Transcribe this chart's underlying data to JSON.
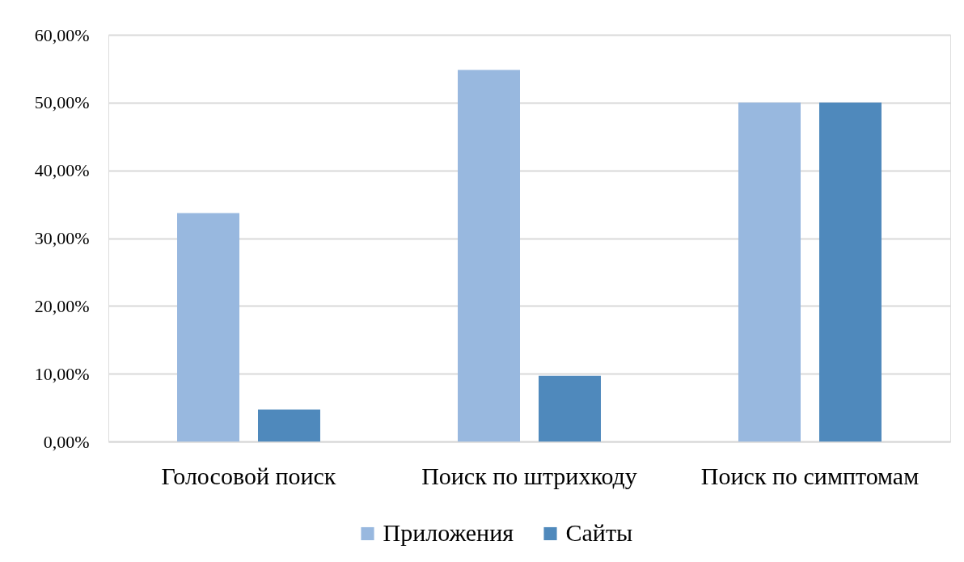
{
  "chart_data": {
    "type": "bar",
    "categories": [
      "Голосовой поиск",
      "Поиск по штрихкоду",
      "Поиск по симптомам"
    ],
    "series": [
      {
        "name": "Приложения",
        "color": "#98b8df",
        "values": [
          33.7,
          54.8,
          50
        ]
      },
      {
        "name": "Сайты",
        "color": "#4f89bc",
        "values": [
          4.7,
          9.7,
          50
        ]
      }
    ],
    "ylim": [
      0,
      60
    ],
    "yticks": [
      {
        "value": 0,
        "label": "0,00%"
      },
      {
        "value": 10,
        "label": "10,00%"
      },
      {
        "value": 20,
        "label": "20,00%"
      },
      {
        "value": 30,
        "label": "30,00%"
      },
      {
        "value": 40,
        "label": "40,00%"
      },
      {
        "value": 50,
        "label": "50,00%"
      },
      {
        "value": 60,
        "label": "60,00%"
      }
    ],
    "grid": "y",
    "legend": "bottom"
  }
}
